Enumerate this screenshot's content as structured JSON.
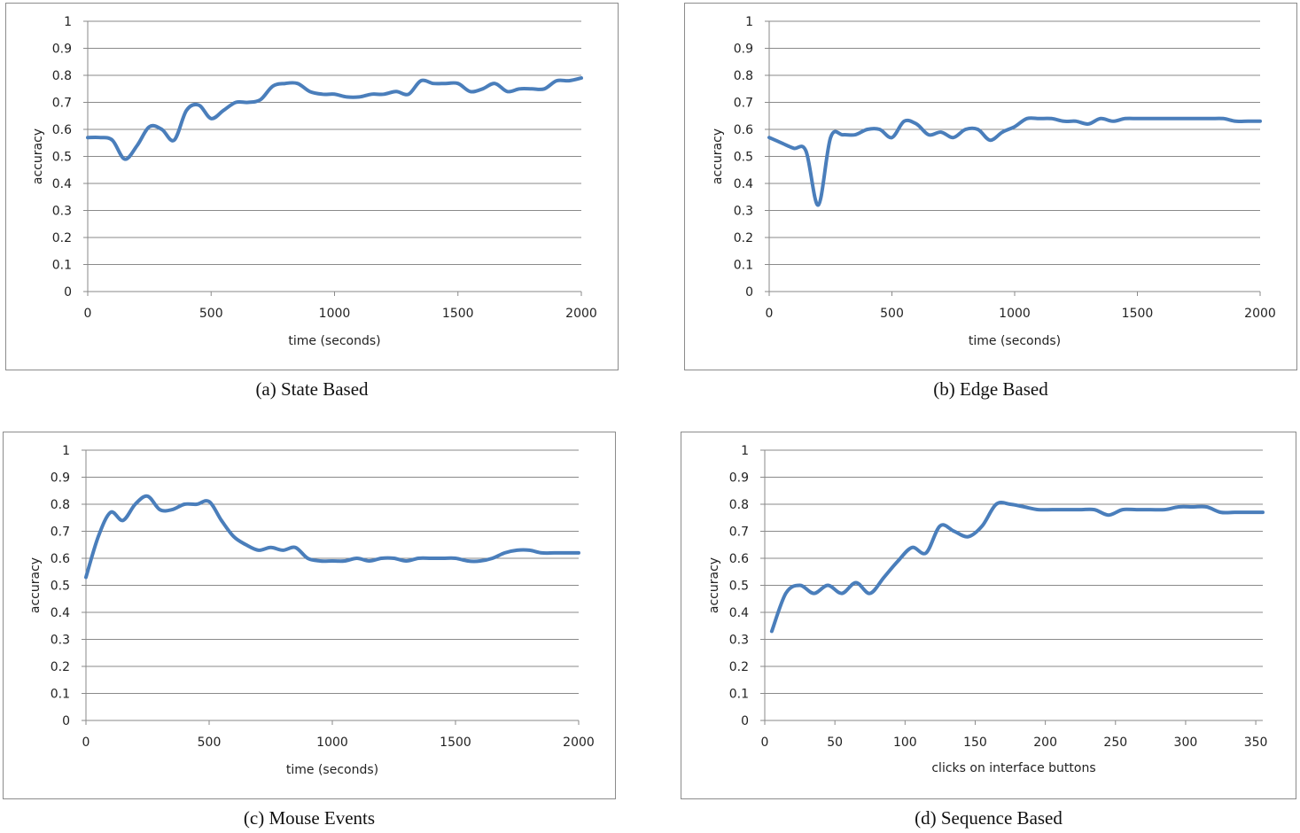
{
  "chart_data": [
    {
      "type": "line",
      "caption": "(a)  State Based",
      "xlabel": "time (seconds)",
      "ylabel": "accuracy",
      "xlim": [
        0,
        2000
      ],
      "ylim": [
        0,
        1
      ],
      "xticks": [
        0,
        500,
        1000,
        1500,
        2000
      ],
      "yticks": [
        0,
        0.1,
        0.2,
        0.3,
        0.4,
        0.5,
        0.6,
        0.7,
        0.8,
        0.9,
        1
      ],
      "ytick_labels": [
        "0",
        "0.1",
        "0.2",
        "0.3",
        "0.4",
        "0.5",
        "0.6",
        "0.7",
        "0.8",
        "0.9",
        "1"
      ],
      "grid": true,
      "legend": "none",
      "color": "#4a7ebb",
      "series": [
        {
          "x": [
            0,
            50,
            100,
            150,
            200,
            250,
            300,
            350,
            400,
            450,
            500,
            550,
            600,
            650,
            700,
            750,
            800,
            850,
            900,
            950,
            1000,
            1050,
            1100,
            1150,
            1200,
            1250,
            1300,
            1350,
            1400,
            1450,
            1500,
            1550,
            1600,
            1650,
            1700,
            1750,
            1800,
            1850,
            1900,
            1950,
            2000
          ],
          "y": [
            0.57,
            0.57,
            0.56,
            0.49,
            0.54,
            0.61,
            0.6,
            0.56,
            0.67,
            0.69,
            0.64,
            0.67,
            0.7,
            0.7,
            0.71,
            0.76,
            0.77,
            0.77,
            0.74,
            0.73,
            0.73,
            0.72,
            0.72,
            0.73,
            0.73,
            0.74,
            0.73,
            0.78,
            0.77,
            0.77,
            0.77,
            0.74,
            0.75,
            0.77,
            0.74,
            0.75,
            0.75,
            0.75,
            0.78,
            0.78,
            0.79
          ]
        }
      ]
    },
    {
      "type": "line",
      "caption": "(b)  Edge Based",
      "xlabel": "time (seconds)",
      "ylabel": "accuracy",
      "xlim": [
        0,
        2000
      ],
      "ylim": [
        0,
        1
      ],
      "xticks": [
        0,
        500,
        1000,
        1500,
        2000
      ],
      "yticks": [
        0,
        0.1,
        0.2,
        0.3,
        0.4,
        0.5,
        0.6,
        0.7,
        0.8,
        0.9,
        1
      ],
      "ytick_labels": [
        "0",
        "0.1",
        "0.2",
        "0.3",
        "0.4",
        "0.5",
        "0.6",
        "0.7",
        "0.8",
        "0.9",
        "1"
      ],
      "grid": true,
      "legend": "none",
      "color": "#4a7ebb",
      "series": [
        {
          "x": [
            0,
            50,
            100,
            150,
            200,
            250,
            300,
            350,
            400,
            450,
            500,
            550,
            600,
            650,
            700,
            750,
            800,
            850,
            900,
            950,
            1000,
            1050,
            1100,
            1150,
            1200,
            1250,
            1300,
            1350,
            1400,
            1450,
            1500,
            1550,
            1600,
            1650,
            1700,
            1750,
            1800,
            1850,
            1900,
            1950,
            2000
          ],
          "y": [
            0.57,
            0.55,
            0.53,
            0.52,
            0.32,
            0.57,
            0.58,
            0.58,
            0.6,
            0.6,
            0.57,
            0.63,
            0.62,
            0.58,
            0.59,
            0.57,
            0.6,
            0.6,
            0.56,
            0.59,
            0.61,
            0.64,
            0.64,
            0.64,
            0.63,
            0.63,
            0.62,
            0.64,
            0.63,
            0.64,
            0.64,
            0.64,
            0.64,
            0.64,
            0.64,
            0.64,
            0.64,
            0.64,
            0.63,
            0.63,
            0.63
          ]
        }
      ]
    },
    {
      "type": "line",
      "caption": "(c)  Mouse Events",
      "xlabel": "time (seconds)",
      "ylabel": "accuracy",
      "xlim": [
        0,
        2000
      ],
      "ylim": [
        0,
        1
      ],
      "xticks": [
        0,
        500,
        1000,
        1500,
        2000
      ],
      "yticks": [
        0,
        0.1,
        0.2,
        0.3,
        0.4,
        0.5,
        0.6,
        0.7,
        0.8,
        0.9,
        1
      ],
      "ytick_labels": [
        "0",
        "0.1",
        "0.2",
        "0.3",
        "0.4",
        "0.5",
        "0.6",
        "0.7",
        "0.8",
        "0.9",
        "1"
      ],
      "grid": true,
      "legend": "none",
      "color": "#4a7ebb",
      "series": [
        {
          "x": [
            0,
            50,
            100,
            150,
            200,
            250,
            300,
            350,
            400,
            450,
            500,
            550,
            600,
            650,
            700,
            750,
            800,
            850,
            900,
            950,
            1000,
            1050,
            1100,
            1150,
            1200,
            1250,
            1300,
            1350,
            1400,
            1450,
            1500,
            1550,
            1600,
            1650,
            1700,
            1750,
            1800,
            1850,
            1900,
            1950,
            2000
          ],
          "y": [
            0.53,
            0.68,
            0.77,
            0.74,
            0.8,
            0.83,
            0.78,
            0.78,
            0.8,
            0.8,
            0.81,
            0.74,
            0.68,
            0.65,
            0.63,
            0.64,
            0.63,
            0.64,
            0.6,
            0.59,
            0.59,
            0.59,
            0.6,
            0.59,
            0.6,
            0.6,
            0.59,
            0.6,
            0.6,
            0.6,
            0.6,
            0.59,
            0.59,
            0.6,
            0.62,
            0.63,
            0.63,
            0.62,
            0.62,
            0.62,
            0.62
          ]
        }
      ]
    },
    {
      "type": "line",
      "caption": "(d)  Sequence Based",
      "xlabel": "clicks on interface buttons",
      "ylabel": "accuracy",
      "xlim": [
        0,
        355
      ],
      "ylim": [
        0,
        1
      ],
      "xticks": [
        0,
        50,
        100,
        150,
        200,
        250,
        300,
        350
      ],
      "yticks": [
        0,
        0.1,
        0.2,
        0.3,
        0.4,
        0.5,
        0.6,
        0.7,
        0.8,
        0.9,
        1
      ],
      "ytick_labels": [
        "0",
        "0.1",
        "0.2",
        "0.3",
        "0.4",
        "0.5",
        "0.6",
        "0.7",
        "0.8",
        "0.9",
        "1"
      ],
      "grid": true,
      "legend": "none",
      "color": "#4a7ebb",
      "series": [
        {
          "x": [
            5,
            15,
            25,
            35,
            45,
            55,
            65,
            75,
            85,
            95,
            105,
            115,
            125,
            135,
            145,
            155,
            165,
            175,
            185,
            195,
            205,
            215,
            225,
            235,
            245,
            255,
            265,
            275,
            285,
            295,
            305,
            315,
            325,
            335,
            345,
            355
          ],
          "y": [
            0.33,
            0.47,
            0.5,
            0.47,
            0.5,
            0.47,
            0.51,
            0.47,
            0.53,
            0.59,
            0.64,
            0.62,
            0.72,
            0.7,
            0.68,
            0.72,
            0.8,
            0.8,
            0.79,
            0.78,
            0.78,
            0.78,
            0.78,
            0.78,
            0.76,
            0.78,
            0.78,
            0.78,
            0.78,
            0.79,
            0.79,
            0.79,
            0.77,
            0.77,
            0.77,
            0.77
          ]
        }
      ]
    }
  ]
}
